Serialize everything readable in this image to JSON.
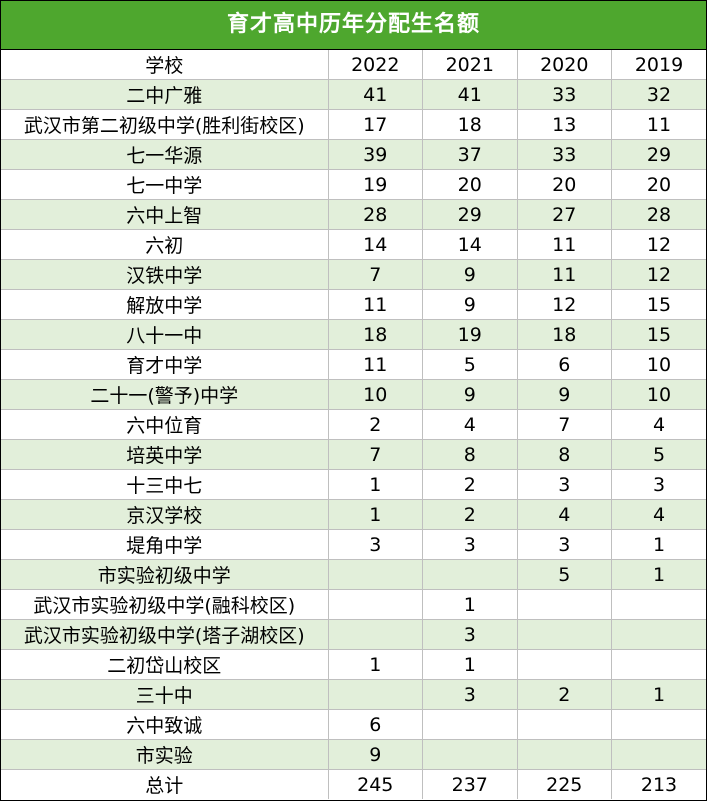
{
  "title": "育才高中历年分配生名额",
  "header": {
    "school": "学校",
    "years": [
      "2022",
      "2021",
      "2020",
      "2019"
    ]
  },
  "rows": [
    {
      "school": "二中广雅",
      "values": [
        "41",
        "41",
        "33",
        "32"
      ]
    },
    {
      "school": "武汉市第二初级中学(胜利街校区)",
      "values": [
        "17",
        "18",
        "13",
        "11"
      ]
    },
    {
      "school": "七一华源",
      "values": [
        "39",
        "37",
        "33",
        "29"
      ]
    },
    {
      "school": "七一中学",
      "values": [
        "19",
        "20",
        "20",
        "20"
      ]
    },
    {
      "school": "六中上智",
      "values": [
        "28",
        "29",
        "27",
        "28"
      ]
    },
    {
      "school": "六初",
      "values": [
        "14",
        "14",
        "11",
        "12"
      ]
    },
    {
      "school": "汉铁中学",
      "values": [
        "7",
        "9",
        "11",
        "12"
      ]
    },
    {
      "school": "解放中学",
      "values": [
        "11",
        "9",
        "12",
        "15"
      ]
    },
    {
      "school": "八十一中",
      "values": [
        "18",
        "19",
        "18",
        "15"
      ]
    },
    {
      "school": "育才中学",
      "values": [
        "11",
        "5",
        "6",
        "10"
      ]
    },
    {
      "school": "二十一(警予)中学",
      "values": [
        "10",
        "9",
        "9",
        "10"
      ]
    },
    {
      "school": "六中位育",
      "values": [
        "2",
        "4",
        "7",
        "4"
      ]
    },
    {
      "school": "培英中学",
      "values": [
        "7",
        "8",
        "8",
        "5"
      ]
    },
    {
      "school": "十三中七",
      "values": [
        "1",
        "2",
        "3",
        "3"
      ]
    },
    {
      "school": "京汉学校",
      "values": [
        "1",
        "2",
        "4",
        "4"
      ]
    },
    {
      "school": "堤角中学",
      "values": [
        "3",
        "3",
        "3",
        "1"
      ]
    },
    {
      "school": "市实验初级中学",
      "values": [
        "",
        "",
        "5",
        "1"
      ]
    },
    {
      "school": "武汉市实验初级中学(融科校区)",
      "values": [
        "",
        "1",
        "",
        ""
      ]
    },
    {
      "school": "武汉市实验初级中学(塔子湖校区)",
      "values": [
        "",
        "3",
        "",
        ""
      ]
    },
    {
      "school": "二初岱山校区",
      "values": [
        "1",
        "1",
        "",
        ""
      ]
    },
    {
      "school": "三十中",
      "values": [
        "",
        "3",
        "2",
        "1"
      ]
    },
    {
      "school": "六中致诚",
      "values": [
        "6",
        "",
        "",
        ""
      ]
    },
    {
      "school": "市实验",
      "values": [
        "9",
        "",
        "",
        ""
      ]
    }
  ],
  "total": {
    "label": "总计",
    "values": [
      "245",
      "237",
      "225",
      "213"
    ]
  },
  "colors": {
    "title_bg": "#4ea72e",
    "alt_row_bg": "#e2efda",
    "grid": "#bfbfbf"
  }
}
